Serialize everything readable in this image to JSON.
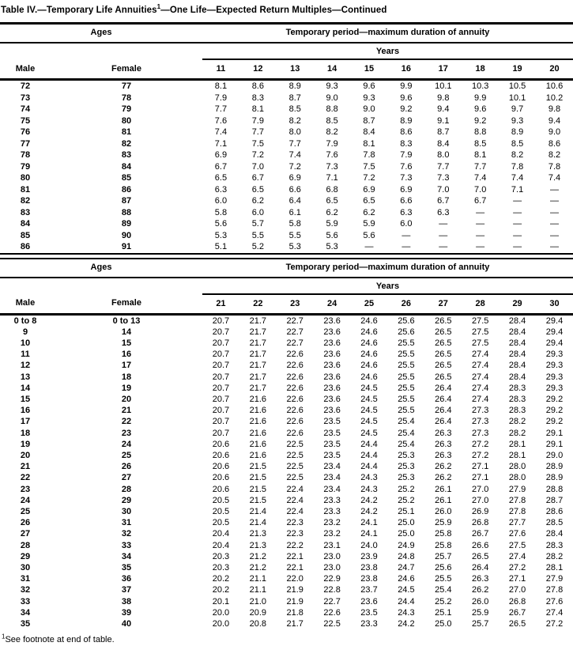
{
  "title": {
    "main": "Table IV.—Temporary Life Annuities",
    "superscript": "1",
    "rest": "—One Life—Expected Return Multiples—Continued"
  },
  "footnote": {
    "superscript": "1",
    "text": "See footnote at end of table."
  },
  "colors": {
    "text": "#000000",
    "background": "#ffffff",
    "rules": "#000000"
  },
  "tables": [
    {
      "ages_header": "Ages",
      "period_header": "Temporary period—maximum duration of annuity",
      "years_header": "Years",
      "male_header": "Male",
      "female_header": "Female",
      "year_columns": [
        "11",
        "12",
        "13",
        "14",
        "15",
        "16",
        "17",
        "18",
        "19",
        "20"
      ],
      "rows": [
        {
          "male": "72",
          "female": "77",
          "values": [
            "8.1",
            "8.6",
            "8.9",
            "9.3",
            "9.6",
            "9.9",
            "10.1",
            "10.3",
            "10.5",
            "10.6"
          ]
        },
        {
          "male": "73",
          "female": "78",
          "values": [
            "7.9",
            "8.3",
            "8.7",
            "9.0",
            "9.3",
            "9.6",
            "9.8",
            "9.9",
            "10.1",
            "10.2"
          ]
        },
        {
          "male": "74",
          "female": "79",
          "values": [
            "7.7",
            "8.1",
            "8.5",
            "8.8",
            "9.0",
            "9.2",
            "9.4",
            "9.6",
            "9.7",
            "9.8"
          ]
        },
        {
          "male": "75",
          "female": "80",
          "values": [
            "7.6",
            "7.9",
            "8.2",
            "8.5",
            "8.7",
            "8.9",
            "9.1",
            "9.2",
            "9.3",
            "9.4"
          ]
        },
        {
          "male": "76",
          "female": "81",
          "values": [
            "7.4",
            "7.7",
            "8.0",
            "8.2",
            "8.4",
            "8.6",
            "8.7",
            "8.8",
            "8.9",
            "9.0"
          ]
        },
        {
          "male": "77",
          "female": "82",
          "values": [
            "7.1",
            "7.5",
            "7.7",
            "7.9",
            "8.1",
            "8.3",
            "8.4",
            "8.5",
            "8.5",
            "8.6"
          ]
        },
        {
          "male": "78",
          "female": "83",
          "values": [
            "6.9",
            "7.2",
            "7.4",
            "7.6",
            "7.8",
            "7.9",
            "8.0",
            "8.1",
            "8.2",
            "8.2"
          ]
        },
        {
          "male": "79",
          "female": "84",
          "values": [
            "6.7",
            "7.0",
            "7.2",
            "7.3",
            "7.5",
            "7.6",
            "7.7",
            "7.7",
            "7.8",
            "7.8"
          ]
        },
        {
          "male": "80",
          "female": "85",
          "values": [
            "6.5",
            "6.7",
            "6.9",
            "7.1",
            "7.2",
            "7.3",
            "7.3",
            "7.4",
            "7.4",
            "7.4"
          ]
        },
        {
          "male": "81",
          "female": "86",
          "values": [
            "6.3",
            "6.5",
            "6.6",
            "6.8",
            "6.9",
            "6.9",
            "7.0",
            "7.0",
            "7.1",
            "—"
          ]
        },
        {
          "male": "82",
          "female": "87",
          "values": [
            "6.0",
            "6.2",
            "6.4",
            "6.5",
            "6.5",
            "6.6",
            "6.7",
            "6.7",
            "—",
            "—"
          ]
        },
        {
          "male": "83",
          "female": "88",
          "values": [
            "5.8",
            "6.0",
            "6.1",
            "6.2",
            "6.2",
            "6.3",
            "6.3",
            "—",
            "—",
            "—"
          ]
        },
        {
          "male": "84",
          "female": "89",
          "values": [
            "5.6",
            "5.7",
            "5.8",
            "5.9",
            "5.9",
            "6.0",
            "—",
            "—",
            "—",
            "—"
          ]
        },
        {
          "male": "85",
          "female": "90",
          "values": [
            "5.3",
            "5.5",
            "5.5",
            "5.6",
            "5.6",
            "—",
            "—",
            "—",
            "—",
            "—"
          ]
        },
        {
          "male": "86",
          "female": "91",
          "values": [
            "5.1",
            "5.2",
            "5.3",
            "5.3",
            "—",
            "—",
            "—",
            "—",
            "—",
            "—"
          ]
        }
      ]
    },
    {
      "ages_header": "Ages",
      "period_header": "Temporary period—maximum duration of annuity",
      "years_header": "Years",
      "male_header": "Male",
      "female_header": "Female",
      "year_columns": [
        "21",
        "22",
        "23",
        "24",
        "25",
        "26",
        "27",
        "28",
        "29",
        "30"
      ],
      "rows": [
        {
          "male": "0 to 8",
          "female": "0 to 13",
          "values": [
            "20.7",
            "21.7",
            "22.7",
            "23.6",
            "24.6",
            "25.6",
            "26.5",
            "27.5",
            "28.4",
            "29.4"
          ]
        },
        {
          "male": "9",
          "female": "14",
          "values": [
            "20.7",
            "21.7",
            "22.7",
            "23.6",
            "24.6",
            "25.6",
            "26.5",
            "27.5",
            "28.4",
            "29.4"
          ]
        },
        {
          "male": "10",
          "female": "15",
          "values": [
            "20.7",
            "21.7",
            "22.7",
            "23.6",
            "24.6",
            "25.5",
            "26.5",
            "27.5",
            "28.4",
            "29.4"
          ]
        },
        {
          "male": "11",
          "female": "16",
          "values": [
            "20.7",
            "21.7",
            "22.6",
            "23.6",
            "24.6",
            "25.5",
            "26.5",
            "27.4",
            "28.4",
            "29.3"
          ]
        },
        {
          "male": "12",
          "female": "17",
          "values": [
            "20.7",
            "21.7",
            "22.6",
            "23.6",
            "24.6",
            "25.5",
            "26.5",
            "27.4",
            "28.4",
            "29.3"
          ]
        },
        {
          "male": "13",
          "female": "18",
          "values": [
            "20.7",
            "21.7",
            "22.6",
            "23.6",
            "24.6",
            "25.5",
            "26.5",
            "27.4",
            "28.4",
            "29.3"
          ]
        },
        {
          "male": "14",
          "female": "19",
          "values": [
            "20.7",
            "21.7",
            "22.6",
            "23.6",
            "24.5",
            "25.5",
            "26.4",
            "27.4",
            "28.3",
            "29.3"
          ]
        },
        {
          "male": "15",
          "female": "20",
          "values": [
            "20.7",
            "21.6",
            "22.6",
            "23.6",
            "24.5",
            "25.5",
            "26.4",
            "27.4",
            "28.3",
            "29.2"
          ]
        },
        {
          "male": "16",
          "female": "21",
          "values": [
            "20.7",
            "21.6",
            "22.6",
            "23.6",
            "24.5",
            "25.5",
            "26.4",
            "27.3",
            "28.3",
            "29.2"
          ]
        },
        {
          "male": "17",
          "female": "22",
          "values": [
            "20.7",
            "21.6",
            "22.6",
            "23.5",
            "24.5",
            "25.4",
            "26.4",
            "27.3",
            "28.2",
            "29.2"
          ]
        },
        {
          "male": "18",
          "female": "23",
          "values": [
            "20.7",
            "21.6",
            "22.6",
            "23.5",
            "24.5",
            "25.4",
            "26.3",
            "27.3",
            "28.2",
            "29.1"
          ]
        },
        {
          "male": "19",
          "female": "24",
          "values": [
            "20.6",
            "21.6",
            "22.5",
            "23.5",
            "24.4",
            "25.4",
            "26.3",
            "27.2",
            "28.1",
            "29.1"
          ]
        },
        {
          "male": "20",
          "female": "25",
          "values": [
            "20.6",
            "21.6",
            "22.5",
            "23.5",
            "24.4",
            "25.3",
            "26.3",
            "27.2",
            "28.1",
            "29.0"
          ]
        },
        {
          "male": "21",
          "female": "26",
          "values": [
            "20.6",
            "21.5",
            "22.5",
            "23.4",
            "24.4",
            "25.3",
            "26.2",
            "27.1",
            "28.0",
            "28.9"
          ]
        },
        {
          "male": "22",
          "female": "27",
          "values": [
            "20.6",
            "21.5",
            "22.5",
            "23.4",
            "24.3",
            "25.3",
            "26.2",
            "27.1",
            "28.0",
            "28.9"
          ]
        },
        {
          "male": "23",
          "female": "28",
          "values": [
            "20.6",
            "21.5",
            "22.4",
            "23.4",
            "24.3",
            "25.2",
            "26.1",
            "27.0",
            "27.9",
            "28.8"
          ]
        },
        {
          "male": "24",
          "female": "29",
          "values": [
            "20.5",
            "21.5",
            "22.4",
            "23.3",
            "24.2",
            "25.2",
            "26.1",
            "27.0",
            "27.8",
            "28.7"
          ]
        },
        {
          "male": "25",
          "female": "30",
          "values": [
            "20.5",
            "21.4",
            "22.4",
            "23.3",
            "24.2",
            "25.1",
            "26.0",
            "26.9",
            "27.8",
            "28.6"
          ]
        },
        {
          "male": "26",
          "female": "31",
          "values": [
            "20.5",
            "21.4",
            "22.3",
            "23.2",
            "24.1",
            "25.0",
            "25.9",
            "26.8",
            "27.7",
            "28.5"
          ]
        },
        {
          "male": "27",
          "female": "32",
          "values": [
            "20.4",
            "21.3",
            "22.3",
            "23.2",
            "24.1",
            "25.0",
            "25.8",
            "26.7",
            "27.6",
            "28.4"
          ]
        },
        {
          "male": "28",
          "female": "33",
          "values": [
            "20.4",
            "21.3",
            "22.2",
            "23.1",
            "24.0",
            "24.9",
            "25.8",
            "26.6",
            "27.5",
            "28.3"
          ]
        },
        {
          "male": "29",
          "female": "34",
          "values": [
            "20.3",
            "21.2",
            "22.1",
            "23.0",
            "23.9",
            "24.8",
            "25.7",
            "26.5",
            "27.4",
            "28.2"
          ]
        },
        {
          "male": "30",
          "female": "35",
          "values": [
            "20.3",
            "21.2",
            "22.1",
            "23.0",
            "23.8",
            "24.7",
            "25.6",
            "26.4",
            "27.2",
            "28.1"
          ]
        },
        {
          "male": "31",
          "female": "36",
          "values": [
            "20.2",
            "21.1",
            "22.0",
            "22.9",
            "23.8",
            "24.6",
            "25.5",
            "26.3",
            "27.1",
            "27.9"
          ]
        },
        {
          "male": "32",
          "female": "37",
          "values": [
            "20.2",
            "21.1",
            "21.9",
            "22.8",
            "23.7",
            "24.5",
            "25.4",
            "26.2",
            "27.0",
            "27.8"
          ]
        },
        {
          "male": "33",
          "female": "38",
          "values": [
            "20.1",
            "21.0",
            "21.9",
            "22.7",
            "23.6",
            "24.4",
            "25.2",
            "26.0",
            "26.8",
            "27.6"
          ]
        },
        {
          "male": "34",
          "female": "39",
          "values": [
            "20.0",
            "20.9",
            "21.8",
            "22.6",
            "23.5",
            "24.3",
            "25.1",
            "25.9",
            "26.7",
            "27.4"
          ]
        },
        {
          "male": "35",
          "female": "40",
          "values": [
            "20.0",
            "20.8",
            "21.7",
            "22.5",
            "23.3",
            "24.2",
            "25.0",
            "25.7",
            "26.5",
            "27.2"
          ]
        }
      ]
    }
  ]
}
